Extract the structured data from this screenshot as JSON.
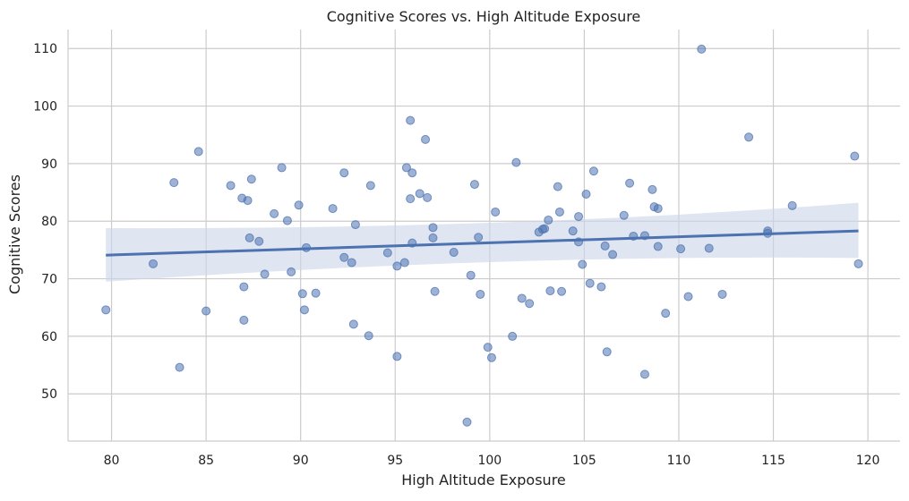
{
  "chart_data": {
    "type": "scatter",
    "title": "Cognitive Scores vs. High Altitude Exposure",
    "xlabel": "High Altitude Exposure",
    "ylabel": "Cognitive Scores",
    "xlim": [
      77.7,
      121.7
    ],
    "ylim": [
      41.8,
      113.3
    ],
    "xticks": [
      80,
      85,
      90,
      95,
      100,
      105,
      110,
      115,
      120
    ],
    "yticks": [
      50,
      60,
      70,
      80,
      90,
      100,
      110
    ],
    "grid": true,
    "legend": "none",
    "colors": {
      "points": "#4c72b0",
      "regression": "#4c72b0",
      "band": "#c9d3e8",
      "grid": "#cccccc",
      "spine": "#cccccc"
    },
    "series": [
      {
        "points": [
          [
            79.7,
            64.6
          ],
          [
            82.2,
            72.6
          ],
          [
            83.3,
            86.7
          ],
          [
            83.6,
            54.6
          ],
          [
            84.6,
            92.1
          ],
          [
            85.0,
            64.4
          ],
          [
            86.3,
            86.2
          ],
          [
            86.9,
            84.0
          ],
          [
            87.0,
            68.6
          ],
          [
            87.0,
            62.8
          ],
          [
            87.2,
            83.6
          ],
          [
            87.3,
            77.1
          ],
          [
            87.4,
            87.3
          ],
          [
            87.8,
            76.5
          ],
          [
            88.1,
            70.8
          ],
          [
            88.6,
            81.3
          ],
          [
            89.0,
            89.3
          ],
          [
            89.3,
            80.1
          ],
          [
            89.5,
            71.2
          ],
          [
            89.9,
            82.8
          ],
          [
            90.1,
            67.4
          ],
          [
            90.2,
            64.6
          ],
          [
            90.3,
            75.4
          ],
          [
            90.8,
            67.5
          ],
          [
            91.7,
            82.2
          ],
          [
            92.3,
            88.4
          ],
          [
            92.3,
            73.7
          ],
          [
            92.7,
            72.8
          ],
          [
            92.8,
            62.1
          ],
          [
            92.9,
            79.4
          ],
          [
            93.6,
            60.1
          ],
          [
            93.7,
            86.2
          ],
          [
            94.6,
            74.5
          ],
          [
            95.1,
            56.5
          ],
          [
            95.1,
            72.2
          ],
          [
            95.5,
            72.8
          ],
          [
            95.6,
            89.3
          ],
          [
            95.8,
            97.5
          ],
          [
            95.8,
            83.9
          ],
          [
            95.9,
            88.4
          ],
          [
            95.9,
            76.2
          ],
          [
            96.3,
            84.8
          ],
          [
            96.6,
            94.2
          ],
          [
            96.7,
            84.1
          ],
          [
            97.0,
            78.9
          ],
          [
            97.0,
            77.1
          ],
          [
            97.1,
            67.8
          ],
          [
            98.1,
            74.6
          ],
          [
            98.8,
            45.1
          ],
          [
            99.0,
            70.6
          ],
          [
            99.2,
            86.4
          ],
          [
            99.4,
            77.2
          ],
          [
            99.5,
            67.3
          ],
          [
            99.9,
            58.1
          ],
          [
            100.1,
            56.3
          ],
          [
            100.3,
            81.6
          ],
          [
            101.2,
            60.0
          ],
          [
            101.4,
            90.2
          ],
          [
            101.7,
            66.6
          ],
          [
            102.1,
            65.7
          ],
          [
            102.6,
            78.1
          ],
          [
            102.8,
            78.6
          ],
          [
            102.9,
            78.7
          ],
          [
            103.1,
            80.2
          ],
          [
            103.2,
            67.9
          ],
          [
            103.6,
            86.0
          ],
          [
            103.7,
            81.6
          ],
          [
            103.8,
            67.8
          ],
          [
            104.4,
            78.3
          ],
          [
            104.7,
            80.8
          ],
          [
            104.7,
            76.4
          ],
          [
            104.9,
            72.5
          ],
          [
            105.1,
            84.7
          ],
          [
            105.3,
            69.2
          ],
          [
            105.5,
            88.7
          ],
          [
            105.9,
            68.6
          ],
          [
            106.1,
            75.7
          ],
          [
            106.2,
            57.3
          ],
          [
            106.5,
            74.2
          ],
          [
            107.1,
            81.0
          ],
          [
            107.4,
            86.6
          ],
          [
            107.6,
            77.4
          ],
          [
            108.2,
            53.4
          ],
          [
            108.2,
            77.5
          ],
          [
            108.6,
            85.5
          ],
          [
            108.7,
            82.5
          ],
          [
            108.9,
            82.2
          ],
          [
            108.9,
            75.6
          ],
          [
            109.3,
            64.0
          ],
          [
            110.1,
            75.2
          ],
          [
            110.5,
            66.9
          ],
          [
            111.2,
            109.9
          ],
          [
            111.6,
            75.3
          ],
          [
            112.3,
            67.3
          ],
          [
            113.7,
            94.6
          ],
          [
            114.7,
            78.3
          ],
          [
            114.7,
            77.9
          ],
          [
            116.0,
            82.7
          ],
          [
            119.3,
            91.3
          ],
          [
            119.5,
            72.6
          ]
        ]
      }
    ],
    "regression": {
      "x": [
        79.7,
        119.5
      ],
      "y": [
        74.1,
        78.3
      ],
      "ci_lower": [
        69.5,
        73.6
      ],
      "ci_mid_x": 101,
      "ci_mid": [
        74.9,
        77.9
      ],
      "ci_upper": [
        78.8,
        83.2
      ]
    }
  }
}
